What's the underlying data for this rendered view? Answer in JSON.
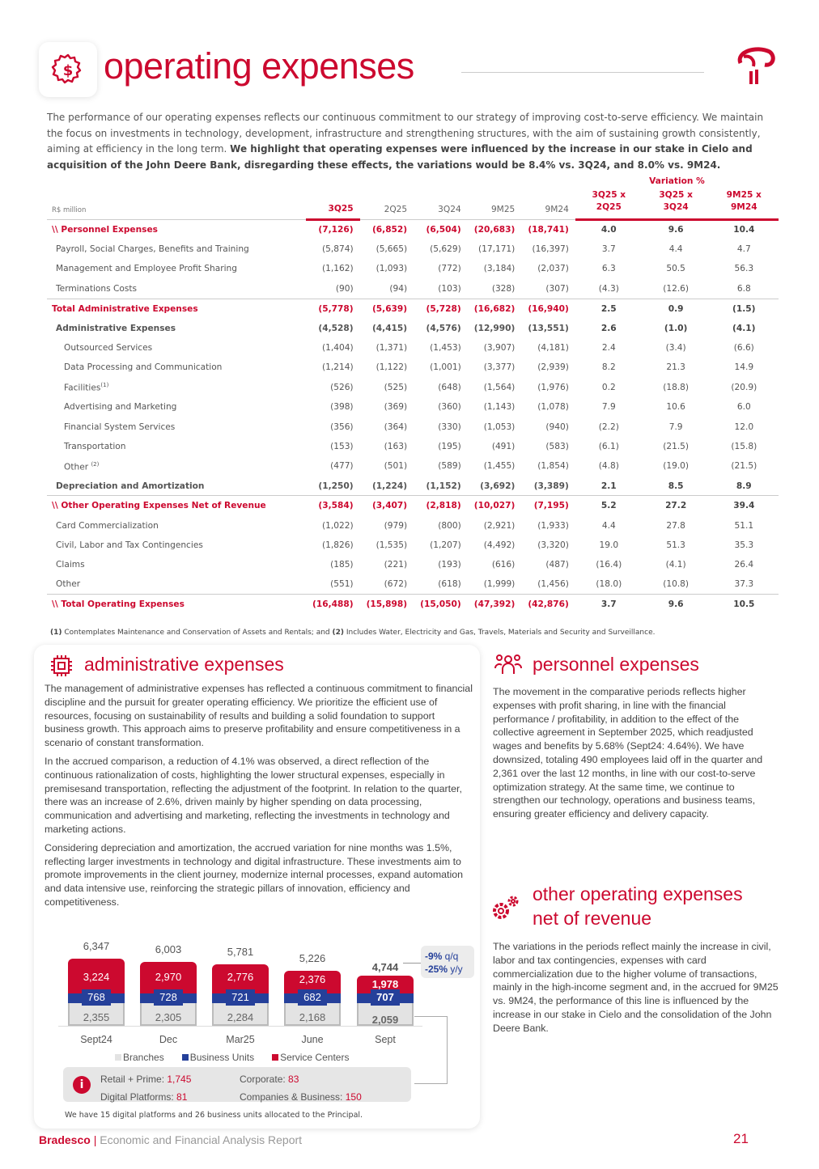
{
  "header": {
    "title": "operating expenses",
    "icon": "gear-dollar-icon",
    "logo": "bradesco-logo"
  },
  "intro": {
    "text": "The performance of our operating expenses reflects our continuous commitment to our strategy of improving cost-to-serve efficiency. We maintain the focus on investments in technology, development, infrastructure and strengthening structures, with the aim of sustaining growth consistently, aiming at efficiency in the long term. ",
    "bold": "We highlight that operating expenses were influenced by the increase in our stake in Cielo and acquisition of the John Deere Bank, disregarding these effects, the variations would be 8.4% vs. 3Q24, and 8.0% vs. 9M24."
  },
  "table": {
    "unit": "R$ million",
    "variation_label": "Variation %",
    "columns": [
      "3Q25",
      "2Q25",
      "3Q24",
      "9M25",
      "9M24",
      "3Q25 x 2Q25",
      "3Q25 x 3Q24",
      "9M25 x 9M24"
    ],
    "rows": [
      {
        "type": "sec",
        "label": "\\\\ Personnel Expenses",
        "v": [
          "(7,126)",
          "(6,852)",
          "(6,504)",
          "(20,683)",
          "(18,741)",
          "4.0",
          "9.6",
          "10.4"
        ]
      },
      {
        "type": "i1",
        "label": "Payroll, Social Charges, Benefits and Training",
        "v": [
          "(5,874)",
          "(5,665)",
          "(5,629)",
          "(17,171)",
          "(16,397)",
          "3.7",
          "4.4",
          "4.7"
        ]
      },
      {
        "type": "i1",
        "label": "Management and Employee Profit Sharing",
        "v": [
          "(1,162)",
          "(1,093)",
          "(772)",
          "(3,184)",
          "(2,037)",
          "6.3",
          "50.5",
          "56.3"
        ]
      },
      {
        "type": "i1",
        "label": "Terminations Costs",
        "v": [
          "(90)",
          "(94)",
          "(103)",
          "(328)",
          "(307)",
          "(4.3)",
          "(12.6)",
          "6.8"
        ]
      },
      {
        "type": "sec",
        "label": "Total Administrative Expenses",
        "v": [
          "(5,778)",
          "(5,639)",
          "(5,728)",
          "(16,682)",
          "(16,940)",
          "2.5",
          "0.9",
          "(1.5)"
        ]
      },
      {
        "type": "bold i1",
        "label": "Administrative Expenses",
        "v": [
          "(4,528)",
          "(4,415)",
          "(4,576)",
          "(12,990)",
          "(13,551)",
          "2.6",
          "(1.0)",
          "(4.1)"
        ]
      },
      {
        "type": "i2",
        "label": "Outsourced Services",
        "v": [
          "(1,404)",
          "(1,371)",
          "(1,453)",
          "(3,907)",
          "(4,181)",
          "2.4",
          "(3.4)",
          "(6.6)"
        ]
      },
      {
        "type": "i2",
        "label": "Data Processing and Communication",
        "v": [
          "(1,214)",
          "(1,122)",
          "(1,001)",
          "(3,377)",
          "(2,939)",
          "8.2",
          "21.3",
          "14.9"
        ]
      },
      {
        "type": "i2",
        "label": "Facilities",
        "sup": "(1)",
        "v": [
          "(526)",
          "(525)",
          "(648)",
          "(1,564)",
          "(1,976)",
          "0.2",
          "(18.8)",
          "(20.9)"
        ]
      },
      {
        "type": "i2",
        "label": "Advertising and Marketing",
        "v": [
          "(398)",
          "(369)",
          "(360)",
          "(1,143)",
          "(1,078)",
          "7.9",
          "10.6",
          "6.0"
        ]
      },
      {
        "type": "i2",
        "label": "Financial System Services",
        "v": [
          "(356)",
          "(364)",
          "(330)",
          "(1,053)",
          "(940)",
          "(2.2)",
          "7.9",
          "12.0"
        ]
      },
      {
        "type": "i2",
        "label": "Transportation",
        "v": [
          "(153)",
          "(163)",
          "(195)",
          "(491)",
          "(583)",
          "(6.1)",
          "(21.5)",
          "(15.8)"
        ]
      },
      {
        "type": "i2",
        "label": "Other ",
        "sup": "(2)",
        "v": [
          "(477)",
          "(501)",
          "(589)",
          "(1,455)",
          "(1,854)",
          "(4.8)",
          "(19.0)",
          "(21.5)"
        ]
      },
      {
        "type": "bold i1",
        "label": "Depreciation and Amortization",
        "v": [
          "(1,250)",
          "(1,224)",
          "(1,152)",
          "(3,692)",
          "(3,389)",
          "2.1",
          "8.5",
          "8.9"
        ]
      },
      {
        "type": "sec",
        "label": "\\\\ Other Operating Expenses Net of Revenue",
        "v": [
          "(3,584)",
          "(3,407)",
          "(2,818)",
          "(10,027)",
          "(7,195)",
          "5.2",
          "27.2",
          "39.4"
        ]
      },
      {
        "type": "i1",
        "label": "Card Commercialization",
        "v": [
          "(1,022)",
          "(979)",
          "(800)",
          "(2,921)",
          "(1,933)",
          "4.4",
          "27.8",
          "51.1"
        ]
      },
      {
        "type": "i1",
        "label": "Civil, Labor and Tax Contingencies",
        "v": [
          "(1,826)",
          "(1,535)",
          "(1,207)",
          "(4,492)",
          "(3,320)",
          "19.0",
          "51.3",
          "35.3"
        ]
      },
      {
        "type": "i1",
        "label": "Claims",
        "v": [
          "(185)",
          "(221)",
          "(193)",
          "(616)",
          "(487)",
          "(16.4)",
          "(4.1)",
          "26.4"
        ]
      },
      {
        "type": "i1",
        "label": "Other",
        "v": [
          "(551)",
          "(672)",
          "(618)",
          "(1,999)",
          "(1,456)",
          "(18.0)",
          "(10.8)",
          "37.3"
        ]
      },
      {
        "type": "sec",
        "label": "\\\\ Total Operating Expenses",
        "v": [
          "(16,488)",
          "(15,898)",
          "(15,050)",
          "(47,392)",
          "(42,876)",
          "3.7",
          "9.6",
          "10.5"
        ]
      }
    ]
  },
  "footnote": {
    "n1": "(1)",
    "t1": " Contemplates Maintenance and Conservation of Assets and Rentals; and ",
    "n2": "(2)",
    "t2": " Includes Water, Electricity and Gas, Travels, Materials and Security and Surveillance."
  },
  "admin": {
    "title": "administrative expenses",
    "icon": "chip-icon",
    "paragraphs": [
      "The management of administrative expenses has reflected a continuous commitment to financial discipline and the pursuit for greater operating efficiency. We prioritize the efficient use of resources, focusing on sustainability of results and building a solid foundation to support business growth. This approach aims to preserve profitability and ensure competitiveness in a scenario of constant transformation.",
      "In the accrued comparison, a reduction of 4.1% was observed, a direct reflection of the continuous rationalization of costs, highlighting the lower structural expenses, especially in premisesand transportation, reflecting the adjustment of the footprint. In relation to the quarter, there was an increase of 2.6%, driven mainly by higher spending on data processing, communication and advertising and marketing, reflecting the investments in technology and marketing actions.",
      "Considering depreciation and amortization, the accrued variation for nine months was 1.5%, reflecting larger investments in technology and digital infrastructure. These investments aim to promote improvements in the client journey, modernize internal processes, expand automation and data intensive use, reinforcing the strategic pillars of innovation, efficiency and competitiveness."
    ]
  },
  "chart_data": {
    "type": "bar",
    "stacked": true,
    "categories": [
      "Sept24",
      "Dec",
      "Mar25",
      "June",
      "Sept"
    ],
    "series": [
      {
        "name": "Branches",
        "values": [
          2355,
          2305,
          2284,
          2168,
          2059
        ],
        "color": "#e3e3e3"
      },
      {
        "name": "Business Units",
        "values": [
          768,
          728,
          721,
          682,
          707
        ],
        "color": "#25409a"
      },
      {
        "name": "Service Centers",
        "values": [
          3224,
          2970,
          2776,
          2376,
          1978
        ],
        "color": "#cc092f"
      }
    ],
    "totals": [
      "6,347",
      "6,003",
      "5,781",
      "5,226",
      "4,744"
    ],
    "labels": {
      "Branches": [
        "2,355",
        "2,305",
        "2,284",
        "2,168",
        "2,059"
      ],
      "Business Units": [
        "768",
        "728",
        "721",
        "682",
        "707"
      ],
      "Service Centers": [
        "3,224",
        "2,970",
        "2,776",
        "2,376",
        "1,978"
      ]
    },
    "annotation": {
      "qq": "-9%",
      "qq_unit": " q/q",
      "yy": "-25%",
      "yy_unit": " y/y"
    }
  },
  "info": {
    "icon": "info-icon",
    "items": [
      {
        "label": "Retail + Prime: ",
        "value": "1,745"
      },
      {
        "label": "Corporate: ",
        "value": "83"
      },
      {
        "label": "Digital Platforms: ",
        "value": "81"
      },
      {
        "label": "Companies & Business: ",
        "value": "150"
      }
    ],
    "note": "We have 15 digital platforms and 26 business units allocated to the Principal."
  },
  "personnel": {
    "title": "personnel expenses",
    "icon": "people-icon",
    "text": "The movement in the comparative periods reflects higher expenses with profit sharing, in line with the financial performance / profitability, in addition to the effect of the collective agreement in September 2025, which readjusted wages and benefits by 5.68% (Sept24: 4.64%). We have downsized, totaling 490 employees laid off in the quarter and 2,361 over the last 12 months, in line with our cost-to-serve optimization strategy. At the same time, we continue to strengthen our technology, operations and business teams, ensuring greater efficiency and delivery capacity."
  },
  "other": {
    "title_1": "other operating expenses",
    "title_2": "net of revenue",
    "icon": "gears-icon",
    "text": "The variations in the periods reflect mainly the increase in civil, labor and tax contingencies, expenses with card commercialization due to the higher volume of transactions, mainly in the high-income segment and, in the accrued for 9M25 vs. 9M24, the performance of this line is influenced by the increase in our stake in Cielo and the consolidation of the John Deere Bank."
  },
  "footer": {
    "brand": "Bradesco",
    "separator": " | ",
    "report": "Economic and Financial Analysis Report",
    "page": "21"
  }
}
